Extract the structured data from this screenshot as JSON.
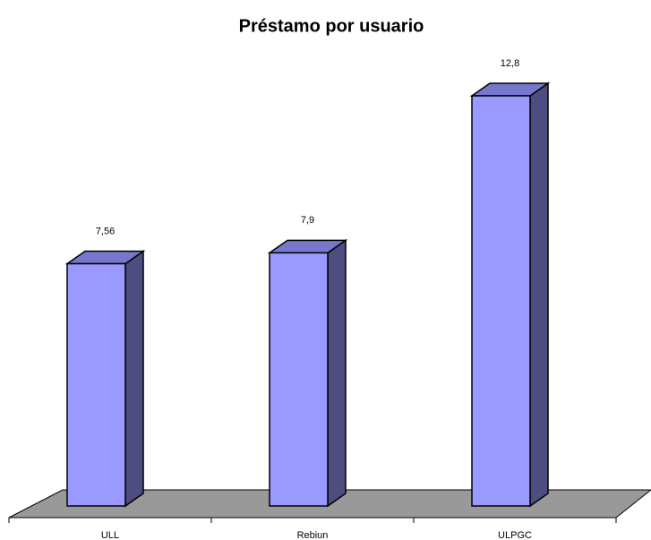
{
  "chart_data": {
    "type": "bar3d",
    "title": "Préstamo por usuario",
    "categories": [
      "ULL",
      "Rebiun",
      "ULPGC"
    ],
    "values": [
      7.56,
      7.9,
      12.8
    ],
    "value_labels": [
      "7,56",
      "7,9",
      "12,8"
    ],
    "color": "#9999ff"
  }
}
